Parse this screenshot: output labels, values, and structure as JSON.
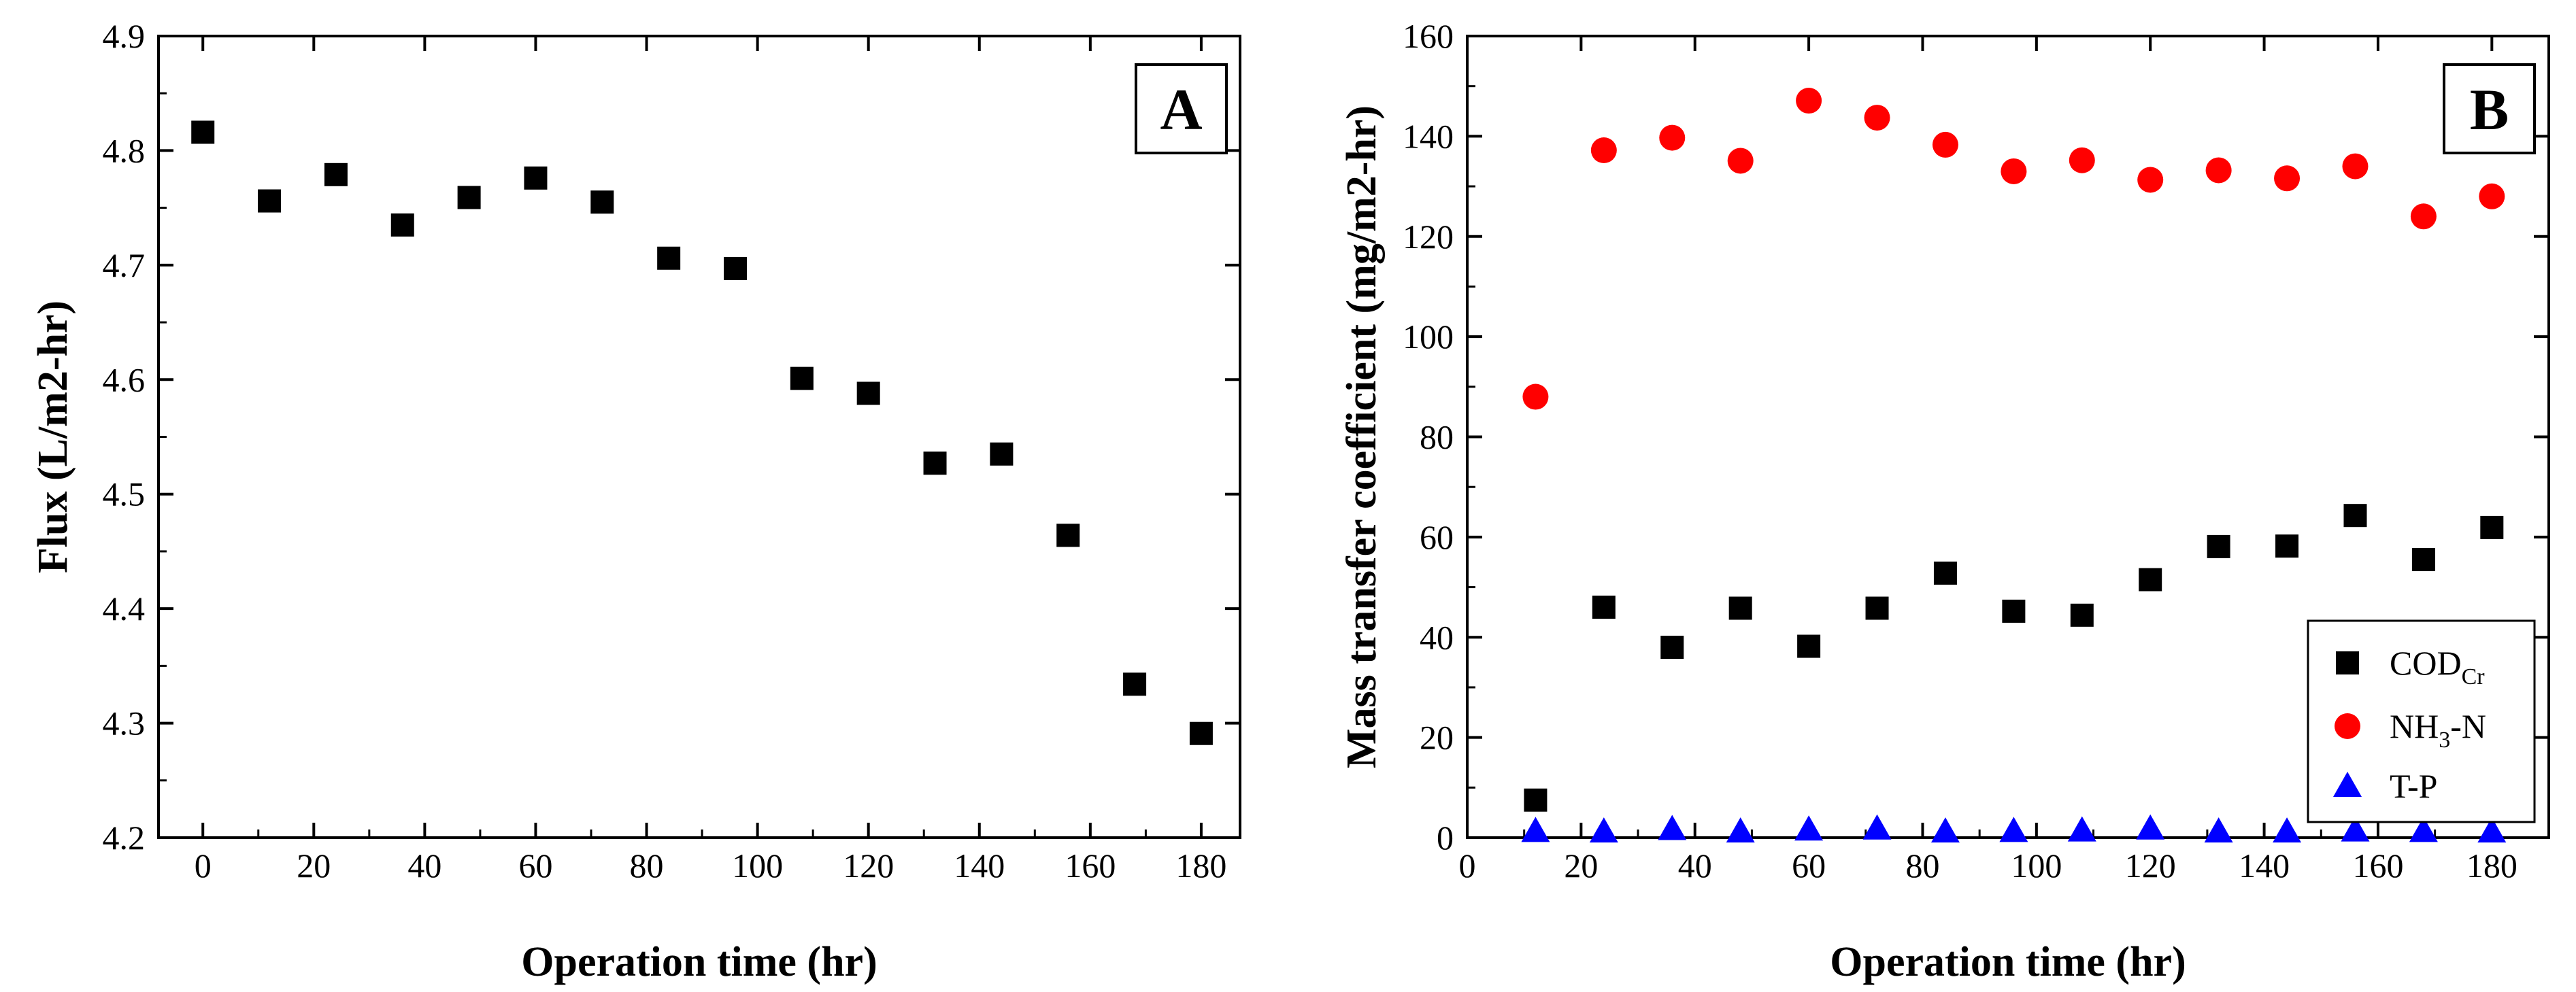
{
  "chart_data": [
    {
      "type": "scatter",
      "panel_label": "A",
      "xlabel": "Operation time (hr)",
      "ylabel": "Flux (L/m2-hr)",
      "xlim": [
        -8,
        187
      ],
      "ylim": [
        4.2,
        4.9
      ],
      "x_ticks": [
        0,
        20,
        40,
        60,
        80,
        100,
        120,
        140,
        160,
        180
      ],
      "x_tick_labels": [
        "0",
        "20",
        "40",
        "60",
        "80",
        "100",
        "120",
        "140",
        "160",
        "180"
      ],
      "y_ticks": [
        4.2,
        4.3,
        4.4,
        4.5,
        4.6,
        4.7,
        4.8,
        4.9
      ],
      "y_tick_labels": [
        "4.2",
        "4.3",
        "4.4",
        "4.5",
        "4.6",
        "4.7",
        "4.8",
        "4.9"
      ],
      "grid": false,
      "series": [
        {
          "marker": "square",
          "color": "#000000",
          "x": [
            0,
            12,
            24,
            36,
            48,
            60,
            72,
            84,
            96,
            108,
            120,
            132,
            144,
            156,
            168,
            180
          ],
          "y": [
            4.816,
            4.756,
            4.779,
            4.735,
            4.759,
            4.776,
            4.755,
            4.706,
            4.697,
            4.601,
            4.588,
            4.527,
            4.535,
            4.464,
            4.334,
            4.291
          ]
        }
      ]
    },
    {
      "type": "scatter",
      "panel_label": "B",
      "xlabel": "Operation time (hr)",
      "ylabel": "Mass transfer coefficient (mg/m2-hr)",
      "xlim": [
        0,
        190
      ],
      "ylim": [
        0,
        160
      ],
      "x_ticks": [
        0,
        20,
        40,
        60,
        80,
        100,
        120,
        140,
        160,
        180
      ],
      "x_tick_labels": [
        "0",
        "20",
        "40",
        "60",
        "80",
        "100",
        "120",
        "140",
        "160",
        "180"
      ],
      "y_ticks": [
        0,
        20,
        40,
        60,
        80,
        100,
        120,
        140,
        160
      ],
      "y_tick_labels": [
        "0",
        "20",
        "40",
        "60",
        "80",
        "100",
        "120",
        "140",
        "160"
      ],
      "grid": false,
      "legend_position": "bottom-right",
      "series": [
        {
          "name": "CODCr",
          "name_main": "COD",
          "name_sub": "Cr",
          "marker": "square",
          "color": "#000000",
          "x": [
            12,
            24,
            36,
            48,
            60,
            72,
            84,
            96,
            108,
            120,
            132,
            144,
            156,
            168,
            180
          ],
          "y": [
            7.5,
            46,
            38,
            45.8,
            38.2,
            45.8,
            52.8,
            45.2,
            44.4,
            51.5,
            58.1,
            58.2,
            64.3,
            55.5,
            61.9
          ]
        },
        {
          "name": "NH3-N",
          "name_main": "NH",
          "name_sub": "3",
          "name_tail": "-N",
          "marker": "circle",
          "color": "#ff0000",
          "x": [
            12,
            24,
            36,
            48,
            60,
            72,
            84,
            96,
            108,
            120,
            132,
            144,
            156,
            168,
            180
          ],
          "y": [
            88,
            137.2,
            139.7,
            135.1,
            147.1,
            143.7,
            138.3,
            133,
            135.2,
            131.3,
            133.2,
            131.6,
            134,
            124,
            128
          ]
        },
        {
          "name": "T-P",
          "marker": "triangle",
          "color": "#0000ff",
          "x": [
            12,
            24,
            36,
            48,
            60,
            72,
            84,
            96,
            108,
            120,
            132,
            144,
            156,
            168,
            180
          ],
          "y": [
            1.3,
            1.2,
            1.7,
            1.2,
            1.6,
            1.8,
            1.2,
            1.3,
            1.4,
            1.8,
            1.2,
            1.2,
            1.4,
            1.3,
            1.2
          ]
        }
      ]
    }
  ]
}
